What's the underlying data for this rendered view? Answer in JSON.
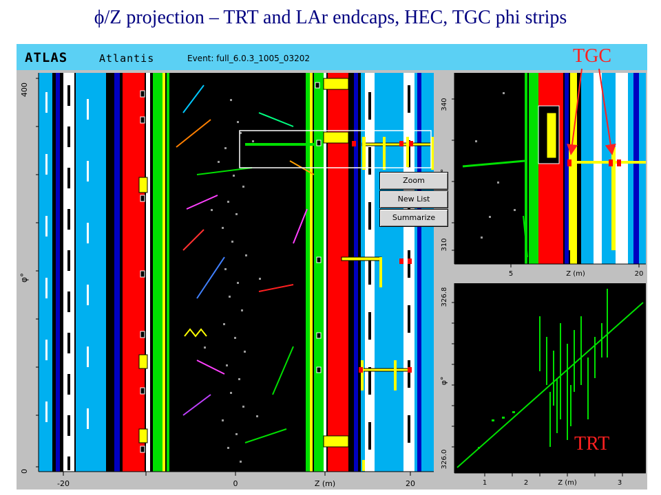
{
  "slide": {
    "title": "ϕ/Z projection – TRT and LAr endcaps, HEC, TGC phi strips"
  },
  "app": {
    "logo": "ATLAS",
    "name": "Atlantis",
    "event": "Event: full_6.0.3_1005_03202"
  },
  "main_view": {
    "y_axis_label": "φ°",
    "y_ticks": [
      "400",
      "0"
    ],
    "x_axis_label": "Z (m)",
    "x_ticks": [
      "-20",
      "0",
      "20"
    ]
  },
  "zoom_view": {
    "y_axis_label": "φ°",
    "y_ticks": [
      "340",
      "310"
    ],
    "x_axis_label": "Z (m)",
    "x_ticks": [
      "5",
      "20"
    ]
  },
  "trt_view": {
    "y_axis_label": "φ°",
    "y_ticks": [
      "326.8",
      "326.0"
    ],
    "x_axis_label": "Z (m)",
    "x_ticks": [
      "1",
      "2",
      "3"
    ]
  },
  "context_menu": {
    "items": [
      "Zoom",
      "New List",
      "Summarize"
    ]
  },
  "annotations": {
    "tgc": "TGC",
    "trt": "TRT"
  },
  "colors": {
    "header": "#5bd0f4",
    "calo_red": "#ff0000",
    "lar_green": "#00e000",
    "muon_cyan": "#00b0f0",
    "tgc_yellow": "#ffff00",
    "background": "#000000",
    "annotation": "#ff2020"
  }
}
